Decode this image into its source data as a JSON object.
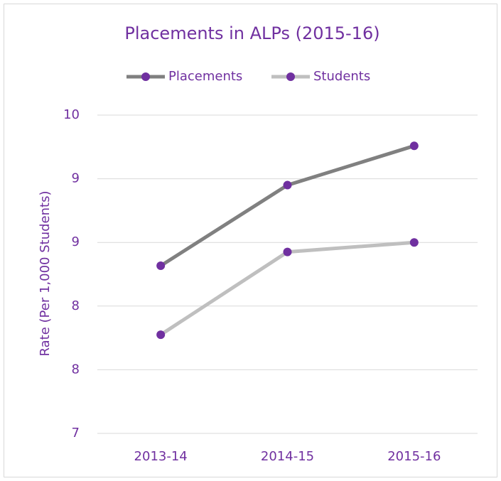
{
  "chart_data": {
    "type": "line",
    "title": "Placements in ALPs (2015-16)",
    "y_label": "Rate (Per 1,000 Students)",
    "categories": [
      "2013-14",
      "2014-15",
      "2015-16"
    ],
    "series": [
      {
        "name": "Placements",
        "color": "#808080",
        "marker_color": "#7030a0",
        "values": [
          8.58,
          9.34,
          9.71
        ]
      },
      {
        "name": "Students",
        "color": "#bfbfbf",
        "marker_color": "#7030a0",
        "values": [
          7.93,
          8.71,
          8.8
        ]
      }
    ],
    "ylim": [
      7,
      10
    ],
    "yticks": [
      7,
      {
        "value": 7.6,
        "label": "8"
      },
      {
        "value": 8.2,
        "label": "8"
      },
      {
        "value": 8.8,
        "label": "9"
      },
      {
        "value": 9.4,
        "label": "9"
      },
      10
    ],
    "grid": true,
    "legend": "top"
  }
}
